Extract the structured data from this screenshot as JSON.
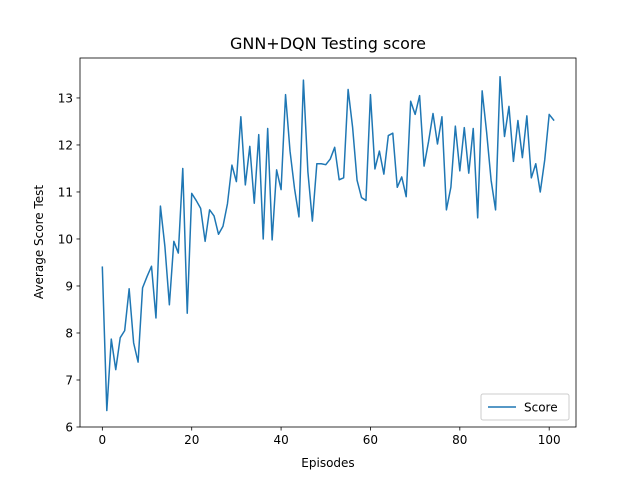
{
  "chart_data": {
    "type": "line",
    "title": "GNN+DQN Testing score",
    "xlabel": "Episodes",
    "ylabel": "Average Score Test",
    "xlim": [
      -5,
      106
    ],
    "ylim": [
      6,
      13.85
    ],
    "x_ticks": [
      0,
      20,
      40,
      60,
      80,
      100
    ],
    "y_ticks": [
      6,
      7,
      8,
      9,
      10,
      11,
      12,
      13
    ],
    "grid": false,
    "legend_position": "lower-right",
    "series": [
      {
        "name": "Score",
        "color": "#1f77b4",
        "x": [
          0,
          1,
          2,
          3,
          4,
          5,
          6,
          7,
          8,
          9,
          10,
          11,
          12,
          13,
          14,
          15,
          16,
          17,
          18,
          19,
          20,
          21,
          22,
          23,
          24,
          25,
          26,
          27,
          28,
          29,
          30,
          31,
          32,
          33,
          34,
          35,
          36,
          37,
          38,
          39,
          40,
          41,
          42,
          43,
          44,
          45,
          46,
          47,
          48,
          49,
          50,
          51,
          52,
          53,
          54,
          55,
          56,
          57,
          58,
          59,
          60,
          61,
          62,
          63,
          64,
          65,
          66,
          67,
          68,
          69,
          70,
          71,
          72,
          73,
          74,
          75,
          76,
          77,
          78,
          79,
          80,
          81,
          82,
          83,
          84,
          85,
          86,
          87,
          88,
          89,
          90,
          91,
          92,
          93,
          94,
          95,
          96,
          97,
          98,
          99,
          100,
          101
        ],
        "values": [
          9.4,
          6.35,
          7.87,
          7.22,
          7.9,
          8.05,
          8.94,
          7.79,
          7.38,
          8.96,
          9.2,
          9.42,
          8.32,
          10.7,
          9.84,
          8.6,
          9.95,
          9.7,
          11.5,
          8.42,
          10.97,
          10.82,
          10.65,
          9.95,
          10.62,
          10.49,
          10.1,
          10.27,
          10.75,
          11.57,
          11.22,
          12.6,
          11.15,
          11.97,
          10.76,
          12.22,
          10.0,
          12.35,
          9.98,
          11.47,
          11.05,
          13.07,
          11.87,
          11.08,
          10.47,
          13.38,
          11.43,
          10.38,
          11.6,
          11.6,
          11.58,
          11.7,
          11.95,
          11.26,
          11.3,
          13.18,
          12.38,
          11.25,
          10.88,
          10.82,
          13.07,
          11.49,
          11.87,
          11.38,
          12.2,
          12.25,
          11.1,
          11.32,
          10.9,
          12.93,
          12.65,
          13.05,
          11.55,
          12.07,
          12.67,
          12.02,
          12.6,
          10.62,
          11.1,
          12.4,
          11.45,
          12.37,
          11.4,
          12.35,
          10.45,
          13.15,
          12.27,
          11.25,
          10.62,
          13.45,
          12.18,
          12.82,
          11.65,
          12.52,
          11.73,
          12.62,
          11.3,
          11.6,
          11.0,
          11.68,
          12.65,
          12.53
        ]
      }
    ]
  }
}
